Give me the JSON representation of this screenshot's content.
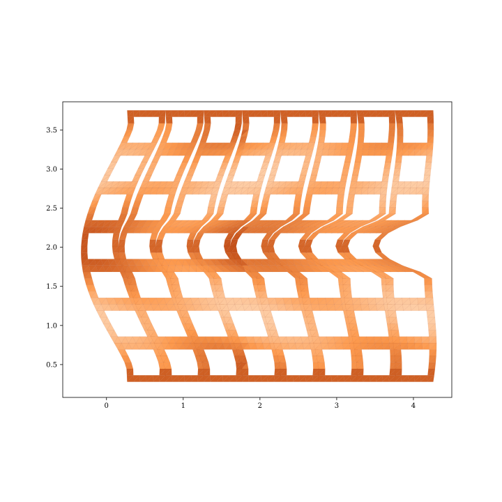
{
  "chart_data": {
    "type": "heatmap",
    "description_of_mesh": "triangulated lattice of square cells with holes, colored by a field value",
    "xlim": [
      -0.57,
      4.5
    ],
    "ylim": [
      0.08,
      3.86
    ],
    "x_ticks": [
      0,
      1,
      2,
      3,
      4
    ],
    "y_ticks": [
      0.5,
      1.0,
      1.5,
      2.0,
      2.5,
      3.0,
      3.5
    ],
    "x_tick_labels": [
      "0",
      "1",
      "2",
      "3",
      "4"
    ],
    "y_tick_labels": [
      "0.5",
      "1.0",
      "1.5",
      "2.0",
      "2.5",
      "3.0",
      "3.5"
    ],
    "colormap": "Oranges",
    "colors": {
      "low": "#fdf0e2",
      "mid": "#fd9a4e",
      "high": "#c4511a",
      "edge": "#a8401a"
    },
    "lattice": {
      "columns": 8,
      "rows": 7,
      "top_y": 3.75,
      "bottom_y": 0.28,
      "right_x": 4.25,
      "left_x_at_top": 0.27,
      "left_x_at_bottom": 0.27,
      "left_x_at_middle": -0.33,
      "notch_right_x": 3.55,
      "hole_fraction": 0.62
    },
    "grid": false,
    "title": "",
    "xlabel": "",
    "ylabel": ""
  }
}
